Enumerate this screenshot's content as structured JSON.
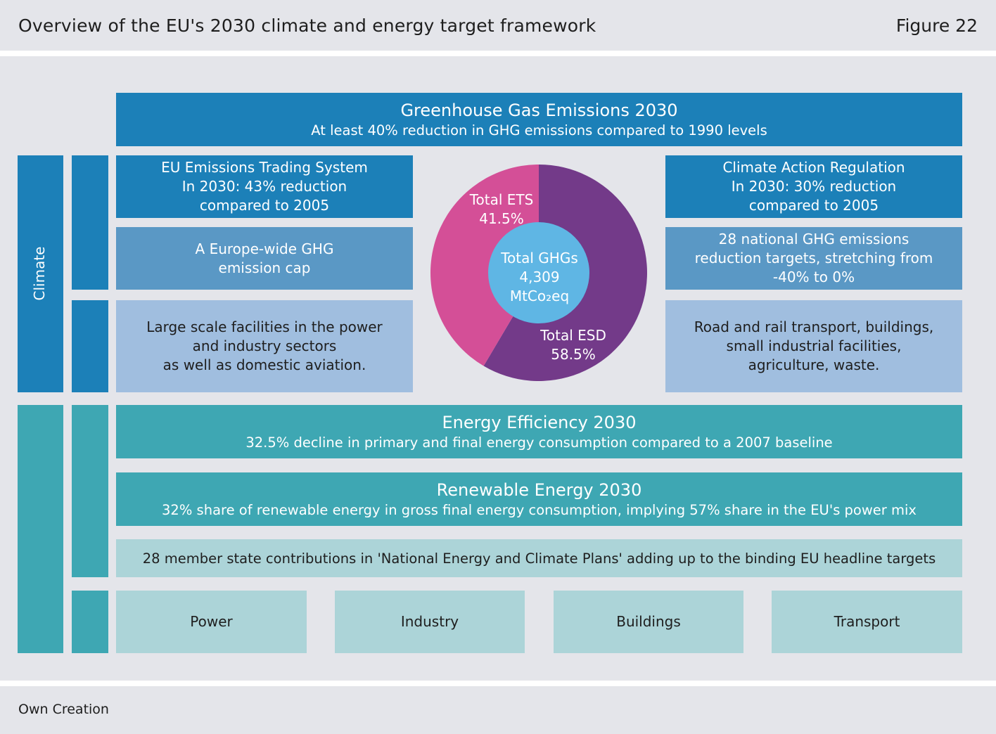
{
  "header": {
    "title": "Overview of the EU's 2030 climate and energy target framework",
    "figure": "Figure 22"
  },
  "footer": {
    "source": "Own Creation"
  },
  "side": {
    "climate_label": "Climate"
  },
  "ghg": {
    "title": "Greenhouse Gas Emissions 2030",
    "subtitle": "At least 40% reduction in GHG emissions compared to 1990 levels"
  },
  "ets": {
    "title_lines": [
      "EU Emissions Trading System",
      "In 2030: 43% reduction",
      "compared to 2005"
    ],
    "cap_lines": [
      "A Europe-wide GHG",
      "emission cap"
    ],
    "scope_lines": [
      "Large scale facilities in the power",
      "and industry sectors",
      "as well as domestic aviation."
    ]
  },
  "car": {
    "title_lines": [
      "Climate Action Regulation",
      "In 2030: 30% reduction",
      "compared to 2005"
    ],
    "targets_lines": [
      "28 national GHG emissions",
      "reduction targets, stretching from",
      "-40% to 0%"
    ],
    "scope_lines": [
      "Road and rail transport, buildings,",
      "small industrial facilities,",
      "agriculture, waste."
    ]
  },
  "chart_data": {
    "type": "pie",
    "slices": [
      {
        "label": "Total ETS",
        "value": 41.5,
        "value_label": "41.5%",
        "color": "#d44f97"
      },
      {
        "label": "Total ESD",
        "value": 58.5,
        "value_label": "58.5%",
        "color": "#733a89"
      }
    ],
    "center": {
      "line1": "Total GHGs",
      "line2": "4,309",
      "line3": "MtCo₂eq",
      "color": "#5fb6e4"
    }
  },
  "ee": {
    "title": "Energy Efficiency 2030",
    "subtitle": "32.5% decline in primary and final energy consumption compared to a 2007 baseline"
  },
  "re": {
    "title": "Renewable Energy 2030",
    "subtitle": "32% share of renewable energy in gross final energy consumption, implying 57% share in the EU's power mix"
  },
  "necp": {
    "text": "28 member state contributions in 'National Energy and Climate Plans' adding up to the binding EU headline targets"
  },
  "sectors": [
    "Power",
    "Industry",
    "Buildings",
    "Transport"
  ],
  "colors": {
    "climate_dark": "#1c80b8",
    "climate_mid": "#5a98c5",
    "climate_light": "#a0bedf",
    "energy_dark": "#3ea7b3",
    "energy_light": "#acd4d8",
    "background": "#e4e5ea"
  }
}
